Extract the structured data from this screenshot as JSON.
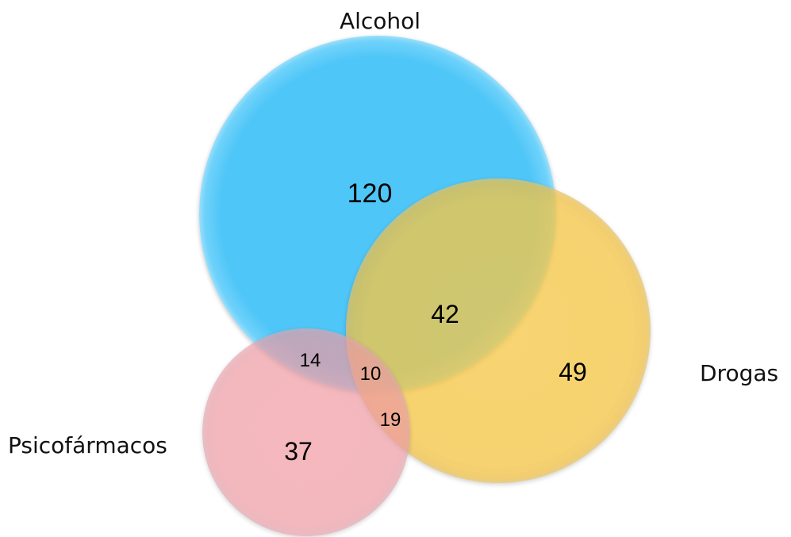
{
  "sets": {
    "alcohol": {
      "label": "Alcohol",
      "color": "#4FC6F8"
    },
    "drogas": {
      "label": "Drogas",
      "color": "#FDCE4C"
    },
    "psicofarmacos": {
      "label": "Psicofármacos",
      "color": "#F7A0A8"
    }
  },
  "regions": {
    "alcohol_only": "120",
    "alcohol_drogas": "42",
    "drogas_only": "49",
    "alcohol_psicofarmacos": "14",
    "all_three": "10",
    "drogas_psicofarmacos": "19",
    "psicofarmacos_only": "37"
  }
}
